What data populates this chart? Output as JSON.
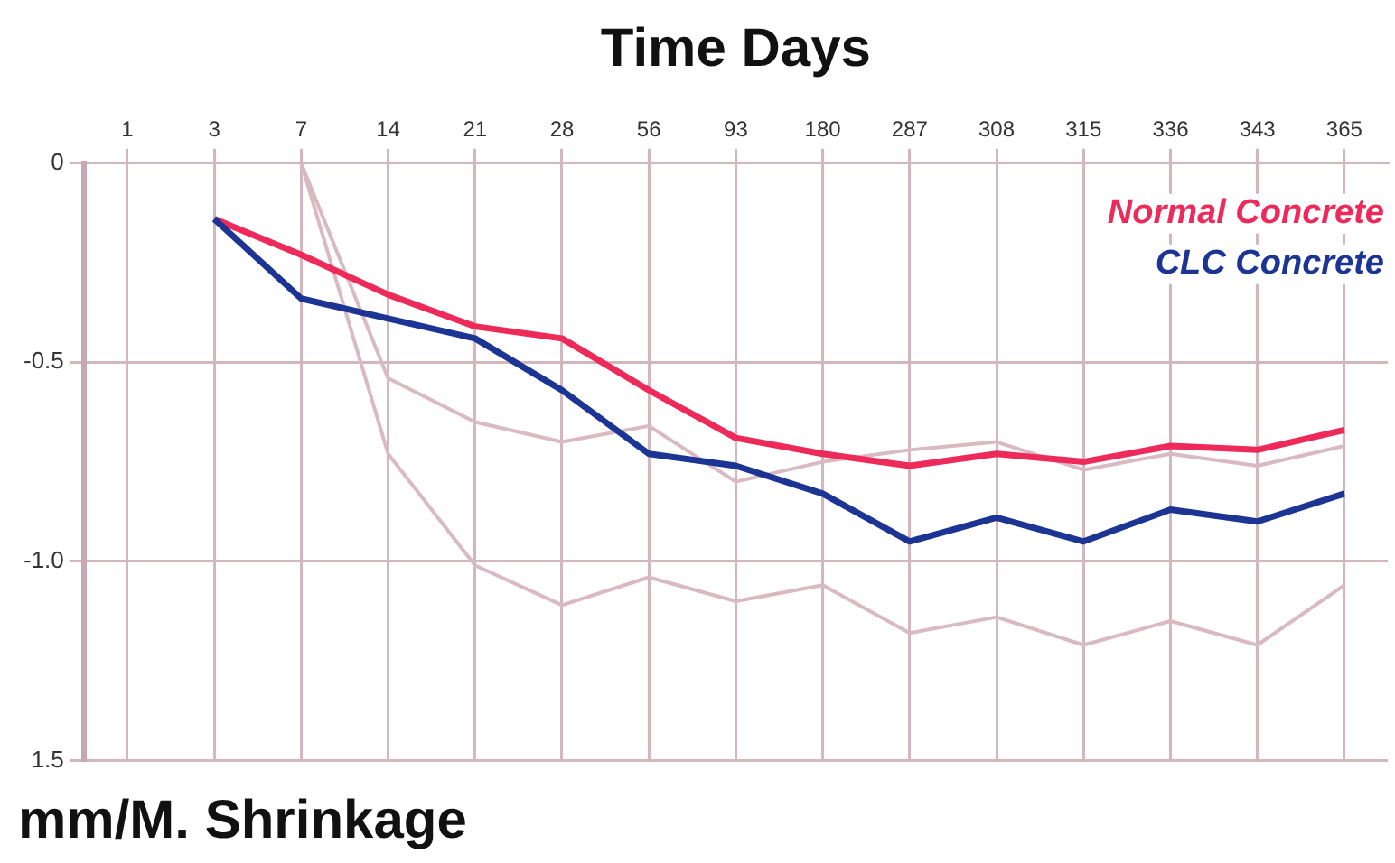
{
  "chart_data": {
    "type": "line",
    "xlabel": "Time Days",
    "ylabel": "mm/M. Shrinkage",
    "categories": [
      "1",
      "3",
      "7",
      "14",
      "21",
      "28",
      "56",
      "93",
      "180",
      "287",
      "308",
      "315",
      "336",
      "343",
      "365"
    ],
    "ylim": [
      -1.5,
      0
    ],
    "yticks": [
      0,
      -0.5,
      {
        "value": -1,
        "label": "-1.0"
      },
      {
        "value": -1.5,
        "label": "1.5"
      }
    ],
    "grid": true,
    "legend": "top right",
    "marker": "none",
    "line_style": "solid",
    "series": [
      {
        "color": "#d9b9c2",
        "values": [
          null,
          null,
          0,
          -0.54,
          -0.65,
          -0.7,
          -0.66,
          -0.8,
          -0.75,
          -0.72,
          -0.7,
          -0.77,
          -0.73,
          -0.76,
          -0.71
        ]
      },
      {
        "color": "#d9b9c2",
        "values": [
          null,
          null,
          0,
          -0.73,
          -1.01,
          -1.11,
          -1.04,
          -1.1,
          -1.06,
          -1.18,
          -1.14,
          -1.21,
          -1.15,
          -1.21,
          -1.06
        ]
      },
      {
        "name": "Normal Concrete",
        "color": "#ee2a5a",
        "values": [
          null,
          -0.14,
          -0.23,
          -0.33,
          -0.41,
          -0.44,
          -0.57,
          -0.69,
          -0.73,
          -0.76,
          -0.73,
          -0.75,
          -0.71,
          -0.72,
          -0.67
        ]
      },
      {
        "name": "CLC Concrete",
        "color": "#1c3594",
        "values": [
          null,
          -0.14,
          -0.34,
          -0.39,
          -0.44,
          -0.57,
          -0.73,
          -0.76,
          -0.83,
          -0.95,
          -0.89,
          -0.95,
          -0.87,
          -0.9,
          -0.83
        ]
      }
    ]
  }
}
